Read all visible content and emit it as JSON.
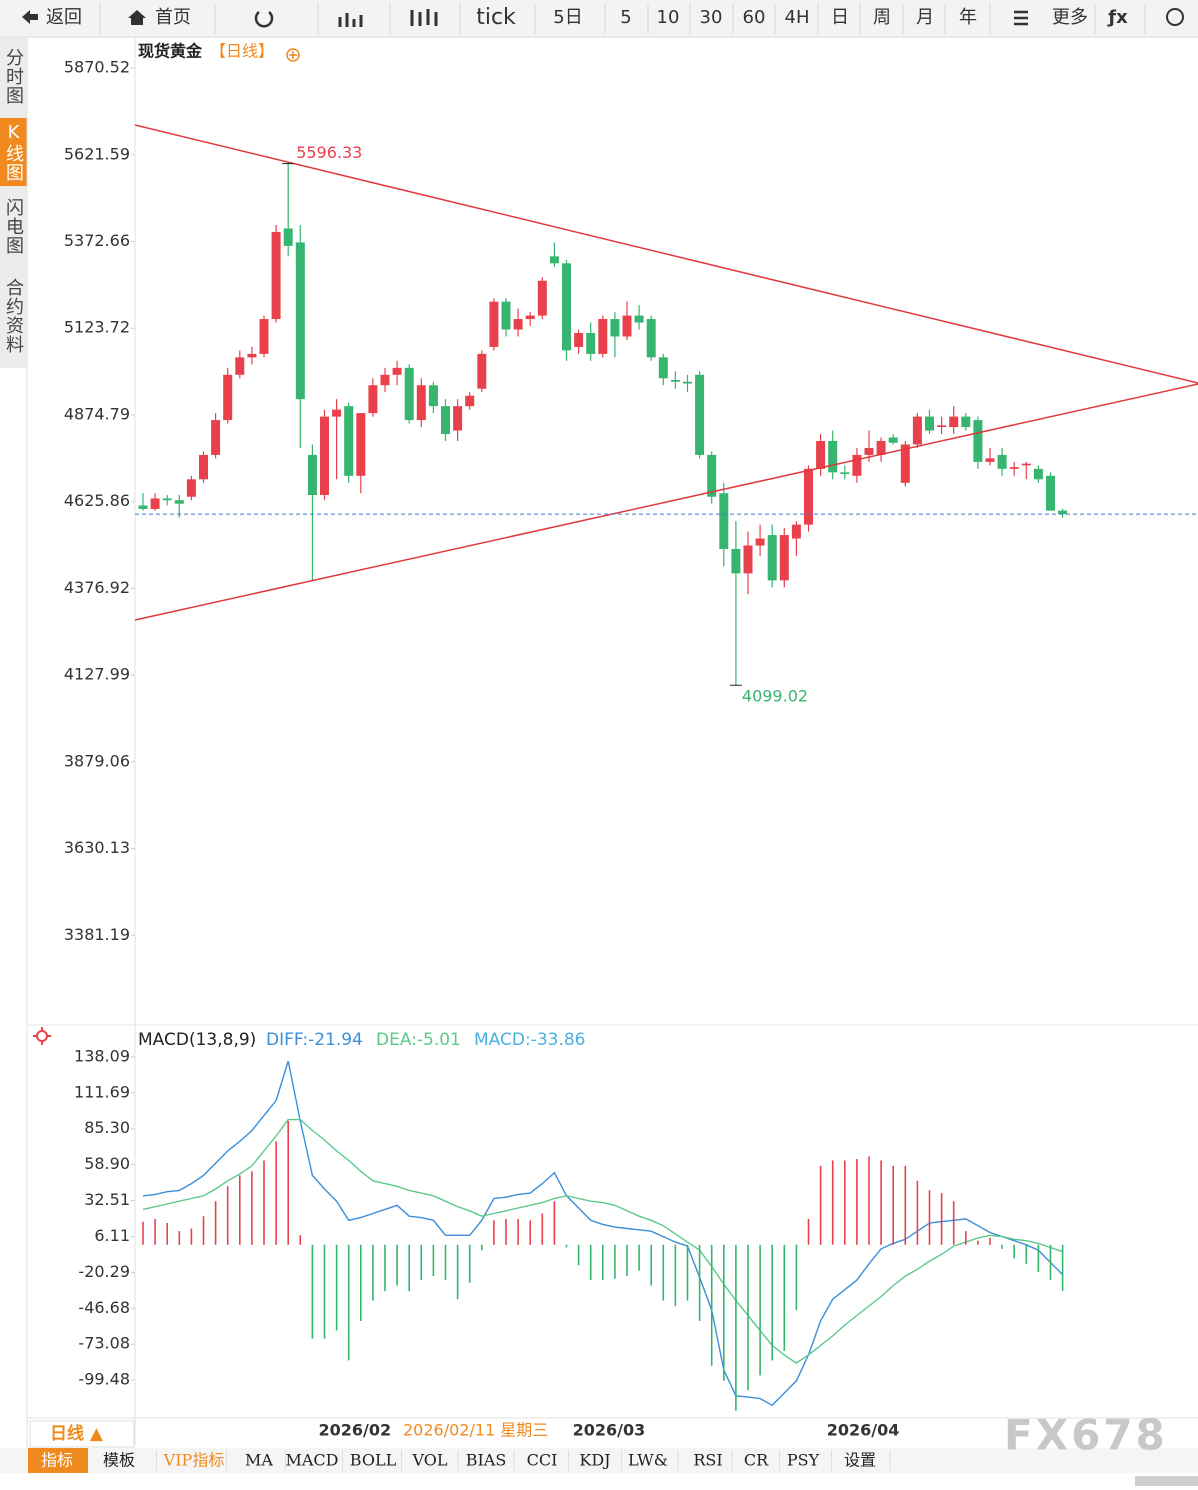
{
  "toolbar": [
    "返回",
    "首页",
    "tick",
    "5日",
    "5",
    "10",
    "30",
    "60",
    "4H",
    "日",
    "周",
    "月",
    "年",
    "更多",
    "ƒx"
  ],
  "side_tabs": [
    "分时图",
    "K线图",
    "闪电图",
    "合约资料"
  ],
  "chart_data": [
    {
      "type": "candlestick",
      "title": "现货黄金",
      "subtitle": "【日线】",
      "up_color": "#e8414c",
      "down_color": "#35b56f",
      "ylim": [
        3138,
        5951
      ],
      "yticks": [
        5870.52,
        5621.59,
        5372.66,
        5123.72,
        4874.79,
        4625.86,
        4376.92,
        4127.99,
        3879.06,
        3630.13,
        3381.19
      ],
      "categories": [
        null,
        null,
        null,
        null,
        null,
        null,
        null,
        null,
        null,
        null,
        null,
        null,
        null,
        null,
        null,
        "2026/02",
        null,
        null,
        null,
        null,
        null,
        null,
        null,
        null,
        null,
        null,
        null,
        null,
        null,
        null,
        null,
        null,
        null,
        null,
        null,
        null,
        "2026/03",
        null,
        null,
        null,
        null,
        null,
        null,
        null,
        null,
        null,
        null,
        null,
        null,
        null,
        null,
        null,
        null,
        null,
        null,
        null,
        null,
        "2026/04",
        null,
        null,
        null,
        null,
        null,
        null,
        null,
        null,
        null,
        null,
        null,
        null,
        null,
        null,
        null,
        null,
        null,
        null,
        null
      ],
      "open": [
        4615,
        4605,
        4635,
        4630,
        4640,
        4690,
        4760,
        4860,
        4990,
        5040,
        5050,
        5150,
        5410,
        5370,
        4760,
        4645,
        4870,
        4900,
        4700,
        4880,
        4960,
        4990,
        5010,
        4860,
        4960,
        4900,
        4830,
        4900,
        4950,
        5070,
        5200,
        5120,
        5150,
        5160,
        5330,
        5310,
        5070,
        5110,
        5050,
        5150,
        5100,
        5160,
        5150,
        5040,
        4975,
        4970,
        4990,
        4760,
        4650,
        4490,
        4420,
        4500,
        4530,
        4400,
        4520,
        4560,
        4720,
        4800,
        4710,
        4700,
        4760,
        4760,
        4810,
        4680,
        4790,
        4870,
        4840,
        4840,
        4870,
        4860,
        4740,
        4760,
        4720,
        4730,
        4720,
        4700,
        4600
      ],
      "high": [
        4650,
        4650,
        4645,
        4645,
        4700,
        4770,
        4880,
        5010,
        5060,
        5070,
        5160,
        5420,
        5596.33,
        5420,
        4790,
        4890,
        4920,
        4910,
        4880,
        4980,
        5010,
        5030,
        5020,
        4980,
        4970,
        4920,
        4920,
        4940,
        5060,
        5210,
        5210,
        5180,
        5170,
        5270,
        5370,
        5320,
        5120,
        5140,
        5160,
        5170,
        5200,
        5190,
        5160,
        5050,
        5000,
        4990,
        5000,
        4770,
        4680,
        4570,
        4540,
        4560,
        4560,
        4550,
        4570,
        4730,
        4820,
        4830,
        4730,
        4780,
        4830,
        4810,
        4820,
        4800,
        4880,
        4890,
        4870,
        4900,
        4880,
        4870,
        4780,
        4780,
        4740,
        4740,
        4730,
        4710,
        4605
      ],
      "low": [
        4600,
        4600,
        4615,
        4580,
        4630,
        4680,
        4750,
        4850,
        4980,
        5020,
        5040,
        5140,
        5330,
        4780,
        4401,
        4630,
        4690,
        4680,
        4650,
        4870,
        4940,
        4960,
        4850,
        4840,
        4880,
        4800,
        4800,
        4890,
        4940,
        5060,
        5100,
        5100,
        5130,
        5150,
        5300,
        5030,
        5050,
        5030,
        5040,
        5040,
        5090,
        5120,
        5030,
        4960,
        4950,
        4940,
        4750,
        4620,
        4440,
        4099.02,
        4360,
        4470,
        4380,
        4380,
        4470,
        4540,
        4700,
        4690,
        4690,
        4680,
        4740,
        4740,
        4790,
        4670,
        4780,
        4820,
        4820,
        4820,
        4830,
        4720,
        4730,
        4700,
        4700,
        4690,
        4680,
        4600,
        4580
      ],
      "close": [
        4605,
        4635,
        4630,
        4620,
        4690,
        4760,
        4860,
        4990,
        5040,
        5050,
        5150,
        5400,
        5360,
        4920,
        4645,
        4870,
        4890,
        4700,
        4880,
        4960,
        4990,
        5010,
        4860,
        4960,
        4900,
        4820,
        4900,
        4930,
        5050,
        5200,
        5120,
        5150,
        5160,
        5260,
        5310,
        5060,
        5110,
        5050,
        5150,
        5100,
        5160,
        5140,
        5040,
        4980,
        4970,
        4965,
        4760,
        4640,
        4490,
        4420,
        4500,
        4520,
        4400,
        4530,
        4560,
        4720,
        4800,
        4710,
        4705,
        4760,
        4780,
        4800,
        4795,
        4790,
        4870,
        4830,
        4845,
        4870,
        4840,
        4740,
        4750,
        4720,
        4725,
        4735,
        4690,
        4600,
        4590
      ]
    },
    {
      "type": "macd",
      "title": "MACD(13,8,9)",
      "up_color": "#e8414c",
      "down_color": "#35b56f",
      "ylim": [
        -125.15,
        157.9
      ],
      "yticks": [
        138.09,
        111.69,
        {
          "value": 85.3,
          "label": "85.30"
        },
        {
          "value": 58.9,
          "label": "58.90"
        },
        32.51,
        6.11,
        -20.29,
        -46.68,
        -73.08,
        -99.48
      ],
      "series": [
        {
          "name": "DIFF:-21.94",
          "color": "#3a8fd8",
          "values": [
            36,
            37,
            39,
            40,
            45,
            51,
            60,
            69,
            76,
            84,
            95,
            106,
            135,
            91,
            51,
            41,
            32,
            18,
            20,
            23,
            26,
            29,
            21,
            20,
            18,
            7,
            7,
            7,
            18,
            34,
            35,
            37,
            38,
            45,
            53,
            36,
            27,
            18,
            15,
            13,
            12,
            11,
            10,
            6,
            2,
            -1,
            -24,
            -48,
            -92,
            -111,
            -112,
            -113,
            -118,
            -109,
            -100,
            -81,
            -56,
            -40,
            -33,
            -26,
            -14,
            -3,
            1,
            4,
            10,
            16,
            17,
            18,
            19,
            14,
            9,
            6,
            3,
            0,
            -4,
            -13,
            -21.94
          ]
        },
        {
          "name": "DEA:-5.01",
          "color": "#5cc98a",
          "values": [
            26,
            28,
            30,
            32,
            34,
            36,
            41,
            47,
            52,
            58,
            69,
            80,
            92,
            92,
            84,
            77,
            69,
            62,
            54,
            47,
            45,
            43,
            40,
            38,
            36,
            32,
            28,
            25,
            21,
            23,
            25,
            27,
            29,
            31,
            34,
            36,
            34,
            32,
            31,
            29,
            25,
            21,
            18,
            14,
            8,
            2,
            -4,
            -16,
            -29,
            -41,
            -52,
            -63,
            -74,
            -81,
            -87,
            -81,
            -74,
            -67,
            -59,
            -52,
            -45,
            -38,
            -30,
            -23,
            -18,
            -12,
            -7,
            -1,
            2,
            5,
            7,
            6,
            4,
            3,
            1,
            -2,
            -5.01
          ]
        },
        {
          "name": "MACD:-33.86",
          "color": "#4ab0e0",
          "type": "bar",
          "values": [
            17,
            19,
            16,
            10,
            12,
            21,
            32,
            43,
            51,
            54,
            62,
            76,
            91,
            7,
            -69,
            -69,
            -63,
            -85,
            -56,
            -41,
            -34,
            -30,
            -34,
            -26,
            -23,
            -26,
            -40,
            -28,
            -4,
            18,
            19,
            19,
            18,
            23,
            32,
            -2,
            -15,
            -26,
            -26,
            -25,
            -23,
            -19,
            -30,
            -41,
            -45,
            -41,
            -56,
            -89,
            -100,
            -122,
            -107,
            -96,
            -85,
            -78,
            -48,
            19,
            58,
            62,
            62,
            63,
            65,
            62,
            58,
            58,
            47,
            40,
            38,
            32,
            10,
            3,
            5,
            -3,
            -10,
            -14,
            -20,
            -26,
            -33.86
          ]
        }
      ]
    }
  ],
  "cursor_label": "2026/02/11 星期三",
  "period_button": "日线 ▲",
  "indicator_tabs": [
    "指标",
    "模板",
    "VIP指标",
    "MA",
    "MACD",
    "BOLL",
    "VOL",
    "BIAS",
    "CCI",
    "KDJ",
    "LW&",
    "RSI",
    "CR",
    "PSY",
    "设置"
  ],
  "watermark": "FX678"
}
